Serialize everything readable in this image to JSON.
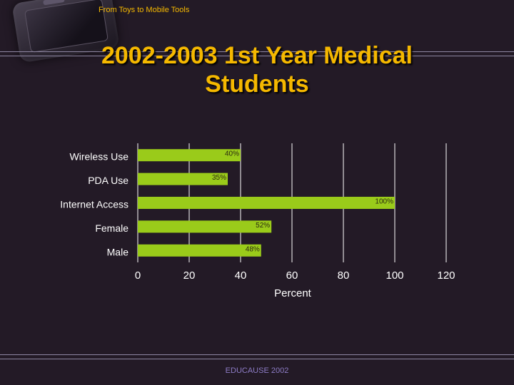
{
  "header": {
    "top_label": "From Toys to Mobile Tools",
    "title_line1": "2002-2003 1st Year Medical",
    "title_line2": "Students"
  },
  "footer": {
    "source": "EDUCAUSE 2002"
  },
  "colors": {
    "background": "#231a26",
    "title": "#f5b800",
    "bar": "#9acb1a",
    "gridline": "#ffffff",
    "axis_text": "#ffffff",
    "footer_text": "#8d7cc6"
  },
  "chart_data": {
    "type": "bar",
    "orientation": "horizontal",
    "categories": [
      "Wireless Use",
      "PDA Use",
      "Internet Access",
      "Female",
      "Male"
    ],
    "values": [
      40,
      35,
      100,
      52,
      48
    ],
    "data_labels": [
      "40%",
      "35%",
      "100%",
      "52%",
      "48%"
    ],
    "xlabel": "Percent",
    "ylabel": "",
    "xlim": [
      0,
      120
    ],
    "xticks": [
      0,
      20,
      40,
      60,
      80,
      100,
      120
    ],
    "grid": true,
    "legend": false
  }
}
